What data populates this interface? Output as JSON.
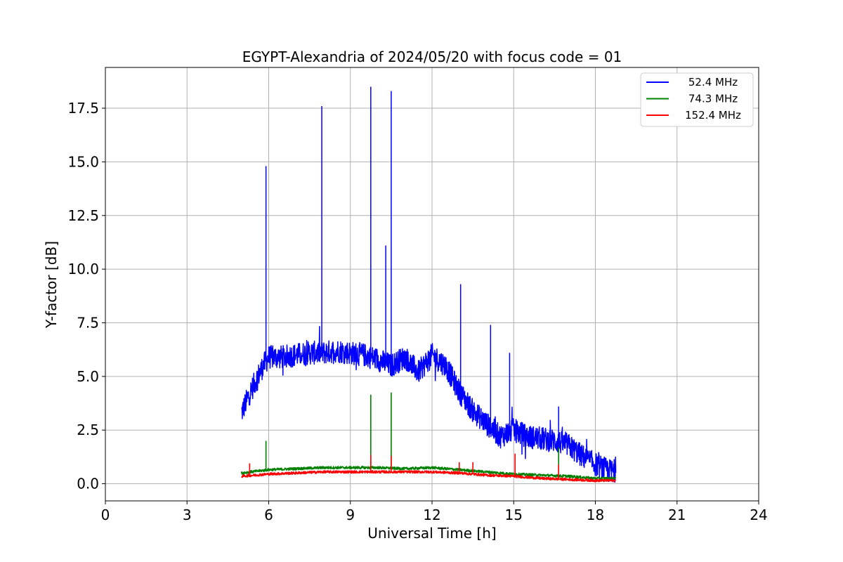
{
  "chart_data": {
    "type": "line",
    "title": "EGYPT-Alexandria of 2024/05/20 with focus code = 01",
    "xlabel": "Universal Time [h]",
    "ylabel": "Y-factor [dB]",
    "xlim": [
      0,
      24
    ],
    "ylim": [
      -0.8,
      19.4
    ],
    "xticks": [
      0,
      3,
      6,
      9,
      12,
      15,
      18,
      21,
      24
    ],
    "xtick_labels": [
      "0",
      "3",
      "6",
      "9",
      "12",
      "15",
      "18",
      "21",
      "24"
    ],
    "yticks": [
      0,
      2.5,
      5,
      7.5,
      10,
      12.5,
      15,
      17.5
    ],
    "ytick_labels": [
      "0.0",
      "2.5",
      "5.0",
      "7.5",
      "10.0",
      "12.5",
      "15.0",
      "17.5"
    ],
    "grid": true,
    "legend_position": "top-right",
    "series": [
      {
        "name": "52.4 MHz",
        "color": "#0000ff",
        "x": [
          5.0,
          5.3,
          5.6,
          5.8,
          6.0,
          6.5,
          7.0,
          7.5,
          8.0,
          8.5,
          9.0,
          9.5,
          10.0,
          10.5,
          11.0,
          11.5,
          12.0,
          12.5,
          13.0,
          13.5,
          14.0,
          14.5,
          15.0,
          15.5,
          16.0,
          16.5,
          17.0,
          17.5,
          18.0,
          18.5,
          18.75
        ],
        "values": [
          3.3,
          4.2,
          5.0,
          5.5,
          5.9,
          5.9,
          6.0,
          6.1,
          6.1,
          6.2,
          6.1,
          6.0,
          5.8,
          5.5,
          5.9,
          5.2,
          6.0,
          5.5,
          4.3,
          3.4,
          2.8,
          2.2,
          2.5,
          2.2,
          2.1,
          2.0,
          1.8,
          1.3,
          0.9,
          0.6,
          0.6
        ],
        "spikes": [
          {
            "x": 5.9,
            "y": 14.8
          },
          {
            "x": 7.95,
            "y": 17.6
          },
          {
            "x": 9.75,
            "y": 18.5
          },
          {
            "x": 10.3,
            "y": 11.1
          },
          {
            "x": 10.5,
            "y": 18.3
          },
          {
            "x": 13.05,
            "y": 9.3
          },
          {
            "x": 14.15,
            "y": 7.4
          },
          {
            "x": 14.85,
            "y": 6.1
          },
          {
            "x": 16.65,
            "y": 3.6
          }
        ]
      },
      {
        "name": "74.3 MHz",
        "color": "#008000",
        "x": [
          5.0,
          6.0,
          7.0,
          8.0,
          9.0,
          10.0,
          11.0,
          12.0,
          13.0,
          14.0,
          15.0,
          16.0,
          17.0,
          18.0,
          18.75
        ],
        "values": [
          0.5,
          0.65,
          0.7,
          0.75,
          0.75,
          0.75,
          0.7,
          0.75,
          0.65,
          0.55,
          0.45,
          0.4,
          0.35,
          0.25,
          0.25
        ],
        "spikes": [
          {
            "x": 5.9,
            "y": 2.0
          },
          {
            "x": 9.75,
            "y": 4.15
          },
          {
            "x": 10.5,
            "y": 4.25
          },
          {
            "x": 16.65,
            "y": 1.7
          }
        ]
      },
      {
        "name": "152.4 MHz",
        "color": "#ff0000",
        "x": [
          5.0,
          6.0,
          7.0,
          8.0,
          9.0,
          10.0,
          11.0,
          12.0,
          13.0,
          14.0,
          15.0,
          16.0,
          17.0,
          18.0,
          18.75
        ],
        "values": [
          0.35,
          0.45,
          0.5,
          0.55,
          0.55,
          0.55,
          0.55,
          0.55,
          0.5,
          0.4,
          0.35,
          0.25,
          0.2,
          0.15,
          0.15
        ],
        "spikes": [
          {
            "x": 5.3,
            "y": 0.95
          },
          {
            "x": 9.75,
            "y": 1.35
          },
          {
            "x": 10.5,
            "y": 1.3
          },
          {
            "x": 13.0,
            "y": 1.0
          },
          {
            "x": 13.5,
            "y": 1.0
          },
          {
            "x": 15.05,
            "y": 1.4
          },
          {
            "x": 16.65,
            "y": 0.9
          }
        ]
      }
    ]
  }
}
